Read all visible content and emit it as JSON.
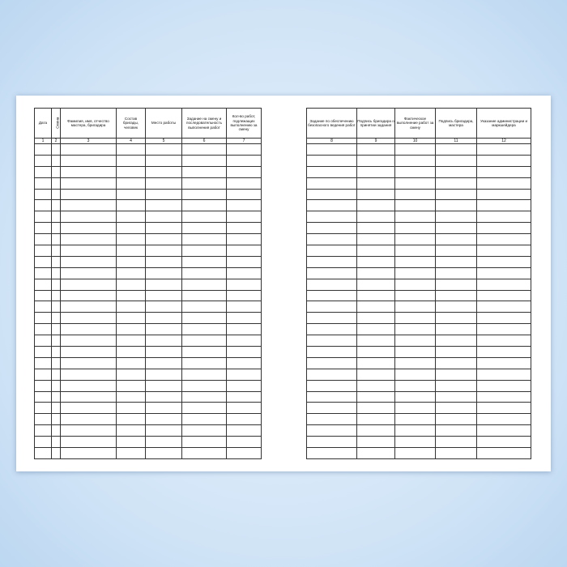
{
  "left_table": {
    "headers": [
      "Дата",
      "Смена",
      "Фамилия, имя, отчество мастера, бригадира",
      "Состав бригады, человек",
      "Место работы",
      "Задание на смену и последовательность выполнения работ",
      "Кол-во работ, подлежащих выполнению за смену"
    ],
    "numbers": [
      1,
      2,
      3,
      4,
      5,
      6,
      7
    ]
  },
  "right_table": {
    "headers": [
      "Задание по обеспечению безопасного ведения работ",
      "Подпись бригадира о принятии задания",
      "Фактическое выполнение работ за смену",
      "Подпись бригадира, мастера",
      "Указание администрации и маркшейдера"
    ],
    "numbers": [
      8,
      9,
      10,
      11,
      12
    ]
  }
}
